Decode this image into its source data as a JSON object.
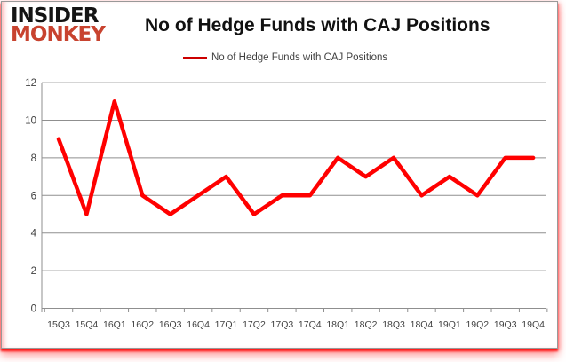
{
  "brand": {
    "line1": "INSIDER",
    "line2": "MONKEY"
  },
  "header": {
    "title": "No of Hedge Funds with CAJ Positions"
  },
  "legend": {
    "label": "No of Hedge Funds with CAJ Positions"
  },
  "chart_data": {
    "type": "line",
    "title": "No of Hedge Funds with CAJ Positions",
    "categories": [
      "15Q3",
      "15Q4",
      "16Q1",
      "16Q2",
      "16Q3",
      "16Q4",
      "17Q1",
      "17Q2",
      "17Q3",
      "17Q4",
      "18Q1",
      "18Q2",
      "18Q3",
      "18Q4",
      "19Q1",
      "19Q2",
      "19Q3",
      "19Q4"
    ],
    "series": [
      {
        "name": "No of Hedge Funds with CAJ Positions",
        "color": "#ff0000",
        "values": [
          9,
          5,
          11,
          6,
          5,
          6,
          7,
          5,
          6,
          6,
          8,
          7,
          8,
          6,
          7,
          6,
          8,
          8
        ]
      }
    ],
    "xlabel": "",
    "ylabel": "",
    "ylim": [
      0,
      12
    ],
    "yticks": [
      0,
      2,
      4,
      6,
      8,
      10,
      12
    ],
    "grid": "horizontal-only",
    "legend_position": "top-center"
  },
  "colors": {
    "series_line": "#ff0000",
    "legend_swatch": "#cc0000",
    "gridline": "#8f8f8f",
    "axis_label": "#3f3f3f",
    "title_text": "#111111",
    "brand_black": "#141414",
    "brand_red": "#c8432f",
    "card_border": "#999999"
  }
}
